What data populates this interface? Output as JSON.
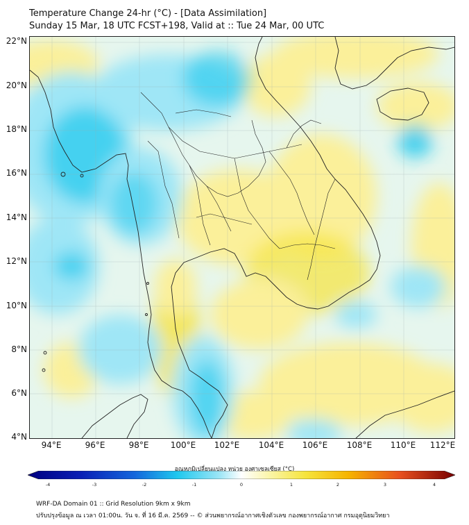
{
  "header": {
    "title": "Temperature Change 24-hr (°C) - [Data Assimilation]",
    "subtitle": "Sunday 15 Mar, 18 UTC FCST+198, Valid at :: Tue 24 Mar, 00 UTC"
  },
  "map": {
    "lat_labels": [
      "22°N",
      "20°N",
      "18°N",
      "16°N",
      "14°N",
      "12°N",
      "10°N",
      "8°N",
      "6°N",
      "4°N"
    ],
    "lon_labels": [
      "94°E",
      "96°E",
      "98°E",
      "100°E",
      "102°E",
      "104°E",
      "106°E",
      "108°E",
      "110°E",
      "112°E"
    ],
    "lat_range": [
      4,
      22.2
    ],
    "lon_range": [
      93,
      112.3
    ],
    "colors": {
      "cyan": "#1ec8ee",
      "light_cyan": "#9fe6f6",
      "pale": "#e6f6ee",
      "yellow": "#fbf09a",
      "deep_yellow": "#f6e43c",
      "border": "#222222"
    }
  },
  "colorbar": {
    "title": "อุณหภูมิเปลี่ยนแปลง หน่วย องศาเซลเซียส (°C)",
    "ticks": [
      "-4",
      "-3",
      "-2",
      "-1",
      "0",
      "1",
      "2",
      "3",
      "4"
    ],
    "range": [
      -4,
      4
    ]
  },
  "footer": {
    "line1": "WRF-DA Domain 01 :: Grid Resolution 9km x 9km",
    "line2": "ปรับปรุงข้อมูล ณ เวลา 01:00น. วัน จ. ที่ 16 มี.ค. 2569 -- © ส่วนพยากรณ์อากาศเชิงตัวเลข กองพยากรณ์อากาศ กรมอุตุนิยมวิทยา"
  }
}
